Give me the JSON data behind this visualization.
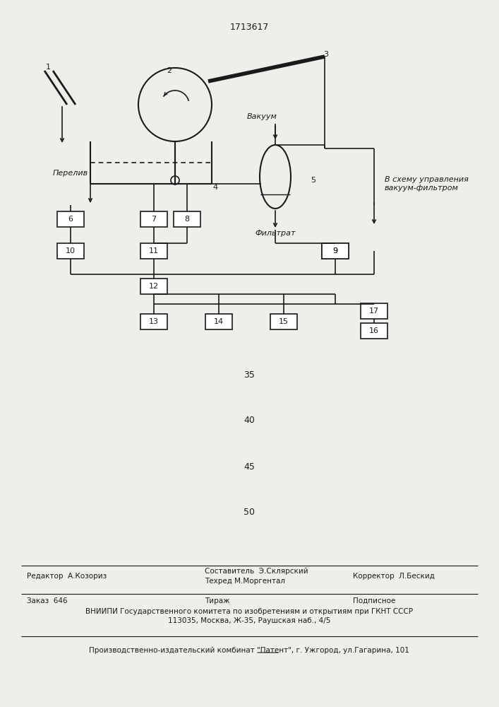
{
  "patent_number": "1713617",
  "bg_color": "#f0eeeb",
  "line_color": "#1a1a1a",
  "numbers_35_to_50": [
    "35",
    "40",
    "45",
    "50"
  ],
  "footer_line1_left": "Редактор  А.Козориз",
  "footer_line1_center": "Составитель  Э.Склярский\nТехред М.Моргентал",
  "footer_line1_right": "Корректор  Л.Бескид",
  "footer_line2_left": "Заказ  646",
  "footer_line2_center": "Тираж",
  "footer_line2_right": "Подписное",
  "footer_line3": "ВНИИПИ Государственного комитета по изобретениям и открытиям при ГКНТ СССР",
  "footer_line4": "113035, Москва, Ж-35, Раушская наб., 4/5",
  "footer_line5": "Производственно-издательский комбинат \"Патент\", г. Ужгород, ул.Гагарина, 101"
}
